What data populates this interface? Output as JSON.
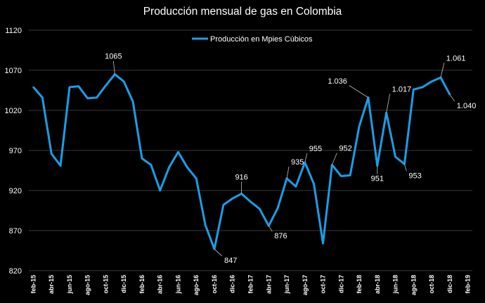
{
  "chart_data": {
    "type": "line",
    "title": "Producción mensual de gas en Colombia",
    "xlabel": "",
    "ylabel": "",
    "ylim": [
      820,
      1120
    ],
    "yticks": [
      820,
      870,
      920,
      970,
      1020,
      1070,
      1120
    ],
    "legend_position": "top",
    "grid": true,
    "colors": {
      "background": "#000000",
      "series": "#1a9ee6",
      "grid": "#3a3a3a",
      "text": "#ffffff"
    },
    "x": [
      "feb-15",
      "mar-15",
      "abr-15",
      "may-15",
      "jun-15",
      "jul-15",
      "ago-15",
      "sep-15",
      "oct-15",
      "nov-15",
      "dic-15",
      "ene-16",
      "feb-16",
      "mar-16",
      "abr-16",
      "may-16",
      "jun-16",
      "jul-16",
      "ago-16",
      "sep-16",
      "oct-16",
      "nov-16",
      "dic-16",
      "ene-17",
      "feb-17",
      "mar-17",
      "abr-17",
      "may-17",
      "jun-17",
      "jul-17",
      "ago-17",
      "sep-17",
      "oct-17",
      "nov-17",
      "dic-17",
      "ene-18",
      "feb-18",
      "mar-18",
      "abr-18",
      "may-18",
      "jun-18",
      "jul-18",
      "ago-18",
      "sep-18",
      "oct-18",
      "nov-18",
      "dic-18",
      "ene-19",
      "feb-19"
    ],
    "x_tick_labels": [
      "feb-15",
      "abr-15",
      "jun-15",
      "ago-15",
      "oct-15",
      "dic-15",
      "feb-16",
      "abr-16",
      "jun-16",
      "ago-16",
      "oct-16",
      "dic-16",
      "feb-17",
      "abr-17",
      "jun-17",
      "ago-17",
      "oct-17",
      "dic-17",
      "feb-18",
      "abr-18",
      "jun-18",
      "ago-18",
      "oct-18",
      "dic-18",
      "feb-19"
    ],
    "series": [
      {
        "name": "Producción en Mpies Cúbicos",
        "values": [
          1049,
          1036,
          966,
          951,
          1049,
          1050,
          1035,
          1036,
          1051,
          1065,
          1056,
          1031,
          960,
          952,
          920,
          949,
          968,
          949,
          935,
          877,
          847,
          902,
          910,
          916,
          906,
          897,
          876,
          898,
          935,
          925,
          955,
          928,
          854,
          952,
          938,
          939,
          1000,
          1036,
          951,
          1017,
          962,
          953,
          1046,
          1049,
          1056,
          1061,
          1040,
          null,
          null
        ]
      }
    ],
    "annotations": [
      {
        "x": "nov-15",
        "label": "1065"
      },
      {
        "x": "oct-16",
        "label": "847"
      },
      {
        "x": "ene-17",
        "label": "916"
      },
      {
        "x": "abr-17",
        "label": "876"
      },
      {
        "x": "jun-17",
        "label": "935"
      },
      {
        "x": "ago-17",
        "label": "955"
      },
      {
        "x": "nov-17",
        "label": "952"
      },
      {
        "x": "mar-18",
        "label": "1.036"
      },
      {
        "x": "abr-18",
        "label": "951"
      },
      {
        "x": "may-18",
        "label": "1.017"
      },
      {
        "x": "jul-18",
        "label": "953"
      },
      {
        "x": "nov-18",
        "label": "1.061"
      },
      {
        "x": "dic-18",
        "label": "1.040"
      }
    ]
  }
}
